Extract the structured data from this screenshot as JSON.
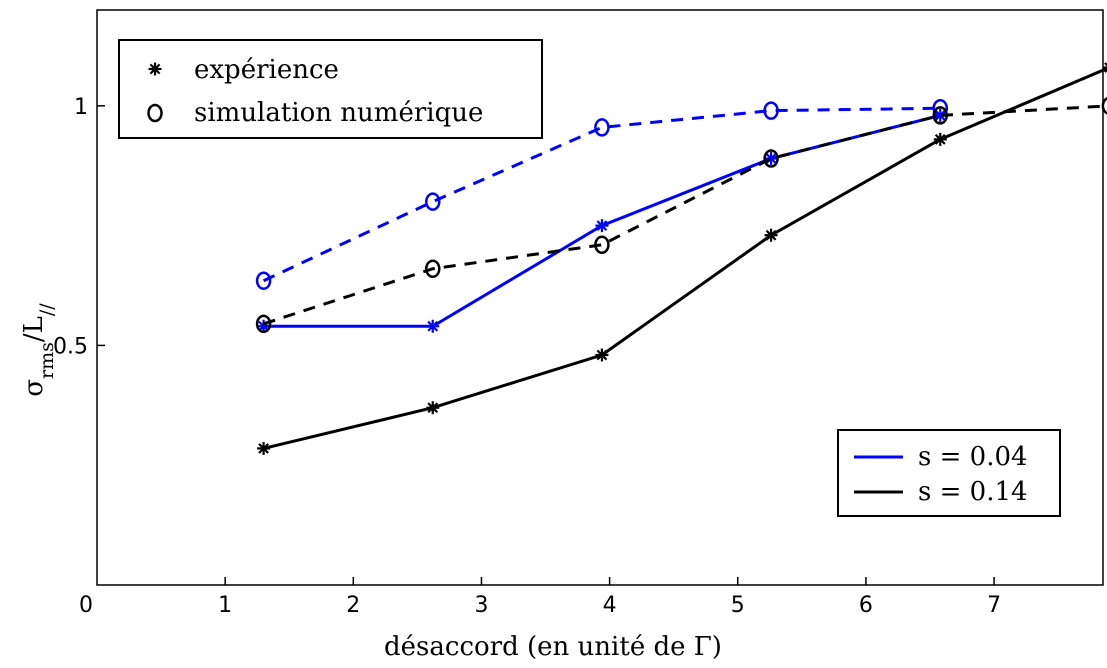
{
  "chart_data": {
    "type": "line",
    "xlabel": "désaccord (en unité de Γ)",
    "ylabel_main": "σ",
    "ylabel_sub": "rms",
    "ylabel_tail": "/L",
    "ylabel_tail_sub": "//",
    "xlim": [
      0,
      7.85
    ],
    "ylim": [
      0,
      1.2
    ],
    "origin_label": "0",
    "xticks": [
      {
        "value": 1,
        "label": "1"
      },
      {
        "value": 2,
        "label": "2"
      },
      {
        "value": 3,
        "label": "3"
      },
      {
        "value": 4,
        "label": "4"
      },
      {
        "value": 5,
        "label": "5"
      },
      {
        "value": 6,
        "label": "6"
      },
      {
        "value": 7,
        "label": "7"
      }
    ],
    "yticks": [
      {
        "value": 0.5,
        "label": "0.5"
      },
      {
        "value": 1,
        "label": "1"
      }
    ],
    "series": [
      {
        "name": "s = 0.04",
        "kind": "expérience",
        "color": "#0000ff",
        "dash": false,
        "marker": "star",
        "x": [
          1.3,
          2.62,
          3.94,
          5.26,
          6.58
        ],
        "y": [
          0.54,
          0.54,
          0.75,
          0.89,
          0.98
        ]
      },
      {
        "name": "s = 0.04",
        "kind": "simulation numérique",
        "color": "#0000ff",
        "dash": true,
        "marker": "circle",
        "x": [
          1.3,
          2.62,
          3.94,
          5.26,
          6.58
        ],
        "y": [
          0.635,
          0.8,
          0.955,
          0.99,
          0.995
        ]
      },
      {
        "name": "s = 0.14",
        "kind": "expérience",
        "color": "#000000",
        "dash": false,
        "marker": "star",
        "x": [
          1.3,
          2.62,
          3.94,
          5.26,
          6.58,
          7.9
        ],
        "y": [
          0.285,
          0.37,
          0.48,
          0.73,
          0.93,
          1.08
        ]
      },
      {
        "name": "s = 0.14",
        "kind": "simulation numérique",
        "color": "#000000",
        "dash": true,
        "marker": "circle",
        "x": [
          1.3,
          2.62,
          3.94,
          5.26,
          6.58,
          7.9
        ],
        "y": [
          0.545,
          0.66,
          0.71,
          0.89,
          0.98,
          1.0
        ]
      }
    ],
    "legend_markers": [
      {
        "marker": "star",
        "label": "expérience"
      },
      {
        "marker": "circle",
        "label": "simulation numérique"
      }
    ],
    "legend_lines": [
      {
        "color": "#0000ff",
        "label": "s = 0.04"
      },
      {
        "color": "#000000",
        "label": "s = 0.14"
      }
    ],
    "legend_markers_position": "top-left",
    "legend_lines_position": "bottom-right",
    "grid": false
  }
}
